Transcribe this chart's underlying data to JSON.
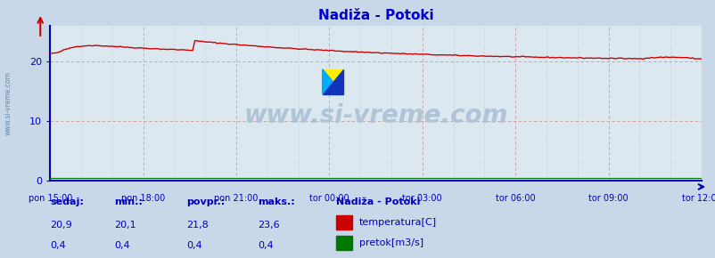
{
  "title": "Nadiža - Potoki",
  "title_color": "#0000cc",
  "fig_bg_color": "#c8d8e8",
  "plot_bg_color": "#dce8f0",
  "x_labels": [
    "pon 15:00",
    "pon 18:00",
    "pon 21:00",
    "tor 00:00",
    "tor 03:00",
    "tor 06:00",
    "tor 09:00",
    "tor 12:00"
  ],
  "y_ticks": [
    0,
    10,
    20
  ],
  "y_min": 0,
  "y_max": 26,
  "axis_color": "#0000bb",
  "grid_color": "#cc9999",
  "minor_grid_color": "#bbbbcc",
  "line_color_temp": "#cc0000",
  "line_color_flow": "#007700",
  "watermark_text": "www.si-vreme.com",
  "watermark_color": "#b0c4d8",
  "sidebar_text": "www.si-vreme.com",
  "sidebar_color": "#6688aa",
  "legend_title": "Nadiža - Potoki",
  "info_color": "#0000bb",
  "info_labels": [
    "sedaj:",
    "min.:",
    "povpr.:",
    "maks.:"
  ],
  "info_temp": [
    "20,9",
    "20,1",
    "21,8",
    "23,6"
  ],
  "info_flow": [
    "0,4",
    "0,4",
    "0,4",
    "0,4"
  ],
  "legend_items": [
    "temperatura[C]",
    "pretok[m3/s]"
  ],
  "legend_item_colors": [
    "#cc0000",
    "#007700"
  ],
  "n_points": 289
}
